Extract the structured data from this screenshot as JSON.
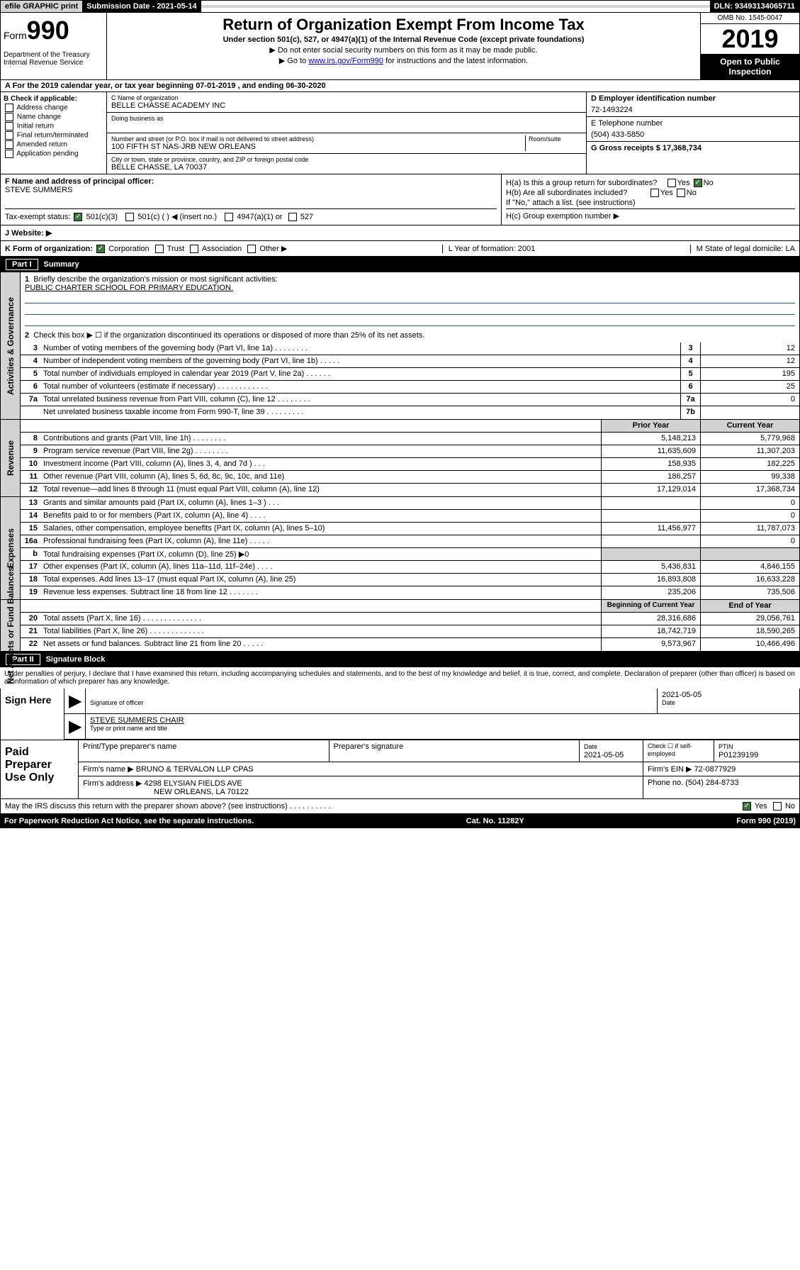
{
  "topbar": {
    "efile": "efile GRAPHIC print",
    "subdate_label": "Submission Date - 2021-05-14",
    "dln": "DLN: 93493134065711"
  },
  "header": {
    "form_prefix": "Form",
    "form_num": "990",
    "dept": "Department of the Treasury Internal Revenue Service",
    "title": "Return of Organization Exempt From Income Tax",
    "subtitle": "Under section 501(c), 527, or 4947(a)(1) of the Internal Revenue Code (except private foundations)",
    "note1": "▶ Do not enter social security numbers on this form as it may be made public.",
    "note2_pre": "▶ Go to ",
    "note2_link": "www.irs.gov/Form990",
    "note2_post": " for instructions and the latest information.",
    "omb": "OMB No. 1545-0047",
    "year": "2019",
    "open": "Open to Public Inspection"
  },
  "period": "A For the 2019 calendar year, or tax year beginning 07-01-2019    , and ending 06-30-2020",
  "boxB": {
    "label": "B Check if applicable:",
    "opts": [
      "Address change",
      "Name change",
      "Initial return",
      "Final return/terminated",
      "Amended return",
      "Application pending"
    ]
  },
  "boxC": {
    "name_label": "C Name of organization",
    "name": "BELLE CHASSE ACADEMY INC",
    "dba_label": "Doing business as",
    "addr_label": "Number and street (or P.O. box if mail is not delivered to street address)",
    "room_label": "Room/suite",
    "addr": "100 FIFTH ST NAS-JRB NEW ORLEANS",
    "city_label": "City or town, state or province, country, and ZIP or foreign postal code",
    "city": "BELLE CHASSE, LA  70037"
  },
  "boxD": {
    "label": "D Employer identification number",
    "val": "72-1493224"
  },
  "boxE": {
    "label": "E Telephone number",
    "val": "(504) 433-5850"
  },
  "boxG": {
    "label": "G Gross receipts $ 17,368,734"
  },
  "boxF": {
    "label": "F  Name and address of principal officer:",
    "val": "STEVE SUMMERS"
  },
  "boxH": {
    "ha": "H(a)  Is this a group return for subordinates?",
    "hb": "H(b)  Are all subordinates included?",
    "hb_note": "If \"No,\" attach a list. (see instructions)",
    "hc": "H(c)  Group exemption number ▶",
    "yes": "Yes",
    "no": "No"
  },
  "taxstatus": {
    "label": "Tax-exempt status:",
    "o1": "501(c)(3)",
    "o2": "501(c) (   ) ◀ (insert no.)",
    "o3": "4947(a)(1) or",
    "o4": "527"
  },
  "website": {
    "label": "J    Website: ▶"
  },
  "korg": {
    "label": "K Form of organization:",
    "o1": "Corporation",
    "o2": "Trust",
    "o3": "Association",
    "o4": "Other ▶",
    "L": "L Year of formation: 2001",
    "M": "M State of legal domicile: LA"
  },
  "part1": {
    "num": "Part I",
    "title": "Summary"
  },
  "gov": {
    "l1": "Briefly describe the organization's mission or most significant activities:",
    "l1v": "PUBLIC CHARTER SCHOOL FOR PRIMARY EDUCATION.",
    "l2": "Check this box ▶ ☐  if the organization discontinued its operations or disposed of more than 25% of its net assets.",
    "rows": [
      {
        "n": "3",
        "d": "Number of voting members of the governing body (Part VI, line 1a)   .    .    .    .    .    .    .    .",
        "b": "3",
        "v": "12"
      },
      {
        "n": "4",
        "d": "Number of independent voting members of the governing body (Part VI, line 1b)   .    .    .    .    .",
        "b": "4",
        "v": "12"
      },
      {
        "n": "5",
        "d": "Total number of individuals employed in calendar year 2019 (Part V, line 2a)   .    .    .    .    .    .",
        "b": "5",
        "v": "195"
      },
      {
        "n": "6",
        "d": "Total number of volunteers (estimate if necessary)    .    .    .    .    .    .    .    .    .    .    .    .",
        "b": "6",
        "v": "25"
      },
      {
        "n": "7a",
        "d": "Total unrelated business revenue from Part VIII, column (C), line 12   .    .    .    .    .    .    .    .",
        "b": "7a",
        "v": "0"
      },
      {
        "n": "",
        "d": "Net unrelated business taxable income from Form 990-T, line 39    .    .    .    .    .    .    .    .    .",
        "b": "7b",
        "v": ""
      }
    ]
  },
  "rev": {
    "head_prior": "Prior Year",
    "head_curr": "Current Year",
    "rows": [
      {
        "n": "8",
        "d": "Contributions and grants (Part VIII, line 1h)   .    .    .    .    .    .    .    .",
        "p": "5,148,213",
        "c": "5,779,968"
      },
      {
        "n": "9",
        "d": "Program service revenue (Part VIII, line 2g)    .    .    .    .    .    .    .    .",
        "p": "11,635,609",
        "c": "11,307,203"
      },
      {
        "n": "10",
        "d": "Investment income (Part VIII, column (A), lines 3, 4, and 7d )   .    .    .",
        "p": "158,935",
        "c": "182,225"
      },
      {
        "n": "11",
        "d": "Other revenue (Part VIII, column (A), lines 5, 6d, 8c, 9c, 10c, and 11e)",
        "p": "186,257",
        "c": "99,338"
      },
      {
        "n": "12",
        "d": "Total revenue—add lines 8 through 11 (must equal Part VIII, column (A), line 12)",
        "p": "17,129,014",
        "c": "17,368,734"
      }
    ]
  },
  "exp": {
    "rows": [
      {
        "n": "13",
        "d": "Grants and similar amounts paid (Part IX, column (A), lines 1–3 )   .    .    .",
        "p": "",
        "c": "0"
      },
      {
        "n": "14",
        "d": "Benefits paid to or for members (Part IX, column (A), line 4)   .    .    .    .",
        "p": "",
        "c": "0"
      },
      {
        "n": "15",
        "d": "Salaries, other compensation, employee benefits (Part IX, column (A), lines 5–10)",
        "p": "11,456,977",
        "c": "11,787,073"
      },
      {
        "n": "16a",
        "d": "Professional fundraising fees (Part IX, column (A), line 11e)   .    .    .    .    .",
        "p": "",
        "c": "0"
      },
      {
        "n": "b",
        "d": "Total fundraising expenses (Part IX, column (D), line 25) ▶0",
        "p": "__GREY__",
        "c": "__GREY__"
      },
      {
        "n": "17",
        "d": "Other expenses (Part IX, column (A), lines 11a–11d, 11f–24e)   .    .    .    .",
        "p": "5,436,831",
        "c": "4,846,155"
      },
      {
        "n": "18",
        "d": "Total expenses. Add lines 13–17 (must equal Part IX, column (A), line 25)",
        "p": "16,893,808",
        "c": "16,633,228"
      },
      {
        "n": "19",
        "d": "Revenue less expenses. Subtract line 18 from line 12   .    .    .    .    .    .    .",
        "p": "235,206",
        "c": "735,506"
      }
    ]
  },
  "net": {
    "head_prior": "Beginning of Current Year",
    "head_curr": "End of Year",
    "rows": [
      {
        "n": "20",
        "d": "Total assets (Part X, line 16)   .    .    .    .    .    .    .    .    .    .    .    .    .    .",
        "p": "28,316,686",
        "c": "29,056,761"
      },
      {
        "n": "21",
        "d": "Total liabilities (Part X, line 26)   .    .    .    .    .    .    .    .    .    .    .    .    .",
        "p": "18,742,719",
        "c": "18,590,265"
      },
      {
        "n": "22",
        "d": "Net assets or fund balances. Subtract line 21 from line 20   .    .    .    .    .",
        "p": "9,573,967",
        "c": "10,466,496"
      }
    ]
  },
  "part2": {
    "num": "Part II",
    "title": "Signature Block"
  },
  "sig": {
    "note": "Under penalties of perjury, I declare that I have examined this return, including accompanying schedules and statements, and to the best of my knowledge and belief, it is true, correct, and complete. Declaration of preparer (other than officer) is based on all information of which preparer has any knowledge.",
    "sign_here": "Sign Here",
    "sig_officer": "Signature of officer",
    "date": "2021-05-05",
    "date_label": "Date",
    "name_title": "STEVE SUMMERS CHAIR",
    "type_label": "Type or print name and title"
  },
  "paid": {
    "label": "Paid Preparer Use Only",
    "h1": "Print/Type preparer's name",
    "h2": "Preparer's signature",
    "h3": "Date",
    "h3v": "2021-05-05",
    "h4": "Check ☐ if self-employed",
    "h5": "PTIN",
    "h5v": "P01239199",
    "firm_label": "Firm's name    ▶",
    "firm": "BRUNO & TERVALON LLP CPAS",
    "ein_label": "Firm's EIN ▶",
    "ein": "72-0877929",
    "addr_label": "Firm's address ▶",
    "addr1": "4298 ELYSIAN FIELDS AVE",
    "addr2": "NEW ORLEANS, LA  70122",
    "phone_label": "Phone no.",
    "phone": "(504) 284-8733"
  },
  "discuss": {
    "q": "May the IRS discuss this return with the preparer shown above? (see instructions)    .    .    .    .    .    .    .    .    .    .",
    "yes": "Yes",
    "no": "No"
  },
  "footer": {
    "left": "For Paperwork Reduction Act Notice, see the separate instructions.",
    "mid": "Cat. No. 11282Y",
    "right": "Form 990 (2019)"
  }
}
